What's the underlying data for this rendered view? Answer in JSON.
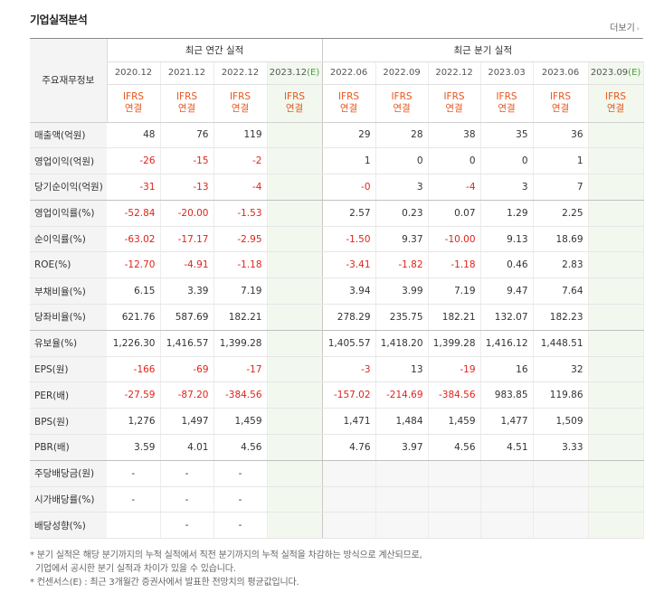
{
  "title": "기업실적분석",
  "more_link": "더보기",
  "header": {
    "main_label": "주요재무정보",
    "annual_group": "최근 연간 실적",
    "quarter_group": "최근 분기 실적",
    "annual_periods": [
      {
        "label": "2020.12",
        "estimate": ""
      },
      {
        "label": "2021.12",
        "estimate": ""
      },
      {
        "label": "2022.12",
        "estimate": ""
      },
      {
        "label": "2023.12",
        "estimate": "(E)"
      }
    ],
    "quarter_periods": [
      {
        "label": "2022.06",
        "estimate": ""
      },
      {
        "label": "2022.09",
        "estimate": ""
      },
      {
        "label": "2022.12",
        "estimate": ""
      },
      {
        "label": "2023.03",
        "estimate": ""
      },
      {
        "label": "2023.06",
        "estimate": ""
      },
      {
        "label": "2023.09",
        "estimate": "(E)"
      }
    ],
    "ifrs_top": "IFRS",
    "ifrs_bottom": "연결"
  },
  "rows": [
    {
      "label": "매출액(억원)",
      "values": [
        "48",
        "76",
        "119",
        "",
        "29",
        "28",
        "38",
        "35",
        "36",
        ""
      ]
    },
    {
      "label": "영업이익(억원)",
      "values": [
        "-26",
        "-15",
        "-2",
        "",
        "1",
        "0",
        "0",
        "0",
        "1",
        ""
      ]
    },
    {
      "label": "당기순이익(억원)",
      "values": [
        "-31",
        "-13",
        "-4",
        "",
        "-0",
        "3",
        "-4",
        "3",
        "7",
        ""
      ]
    },
    {
      "label": "영업이익률(%)",
      "values": [
        "-52.84",
        "-20.00",
        "-1.53",
        "",
        "2.57",
        "0.23",
        "0.07",
        "1.29",
        "2.25",
        ""
      ]
    },
    {
      "label": "순이익률(%)",
      "values": [
        "-63.02",
        "-17.17",
        "-2.95",
        "",
        "-1.50",
        "9.37",
        "-10.00",
        "9.13",
        "18.69",
        ""
      ]
    },
    {
      "label": "ROE(%)",
      "values": [
        "-12.70",
        "-4.91",
        "-1.18",
        "",
        "-3.41",
        "-1.82",
        "-1.18",
        "0.46",
        "2.83",
        ""
      ]
    },
    {
      "label": "부채비율(%)",
      "values": [
        "6.15",
        "3.39",
        "7.19",
        "",
        "3.94",
        "3.99",
        "7.19",
        "9.47",
        "7.64",
        ""
      ]
    },
    {
      "label": "당좌비율(%)",
      "values": [
        "621.76",
        "587.69",
        "182.21",
        "",
        "278.29",
        "235.75",
        "182.21",
        "132.07",
        "182.23",
        ""
      ]
    },
    {
      "label": "유보율(%)",
      "values": [
        "1,226.30",
        "1,416.57",
        "1,399.28",
        "",
        "1,405.57",
        "1,418.20",
        "1,399.28",
        "1,416.12",
        "1,448.51",
        ""
      ]
    },
    {
      "label": "EPS(원)",
      "values": [
        "-166",
        "-69",
        "-17",
        "",
        "-3",
        "13",
        "-19",
        "16",
        "32",
        ""
      ]
    },
    {
      "label": "PER(배)",
      "values": [
        "-27.59",
        "-87.20",
        "-384.56",
        "",
        "-157.02",
        "-214.69",
        "-384.56",
        "983.85",
        "119.86",
        ""
      ]
    },
    {
      "label": "BPS(원)",
      "values": [
        "1,276",
        "1,497",
        "1,459",
        "",
        "1,471",
        "1,484",
        "1,459",
        "1,477",
        "1,509",
        ""
      ]
    },
    {
      "label": "PBR(배)",
      "values": [
        "3.59",
        "4.01",
        "4.56",
        "",
        "4.76",
        "3.97",
        "4.56",
        "4.51",
        "3.33",
        ""
      ]
    },
    {
      "label": "주당배당금(원)",
      "values": [
        "-",
        "-",
        "-",
        "",
        "",
        "",
        "",
        "",
        "",
        ""
      ]
    },
    {
      "label": "시가배당률(%)",
      "values": [
        "-",
        "-",
        "-",
        "",
        "",
        "",
        "",
        "",
        "",
        ""
      ]
    },
    {
      "label": "배당성향(%)",
      "values": [
        "",
        "-",
        "-",
        "",
        "",
        "",
        "",
        "",
        "",
        ""
      ]
    }
  ],
  "notes": [
    "* 분기 실적은 해당 분기까지의 누적 실적에서 직전 분기까지의 누적 실적을 차감하는 방식으로 계산되므로,",
    "  기업에서 공시한 분기 실적과 차이가 있을 수 있습니다.",
    "* 컨센서스(E) : 최근 3개월간 증권사에서 발표한 전망치의 평균값입니다."
  ],
  "colors": {
    "negative": "#e0231a",
    "ifrs": "#e8561d",
    "estimate_mark": "#4a9e3f",
    "estimate_bg": "#f2f8ee"
  }
}
